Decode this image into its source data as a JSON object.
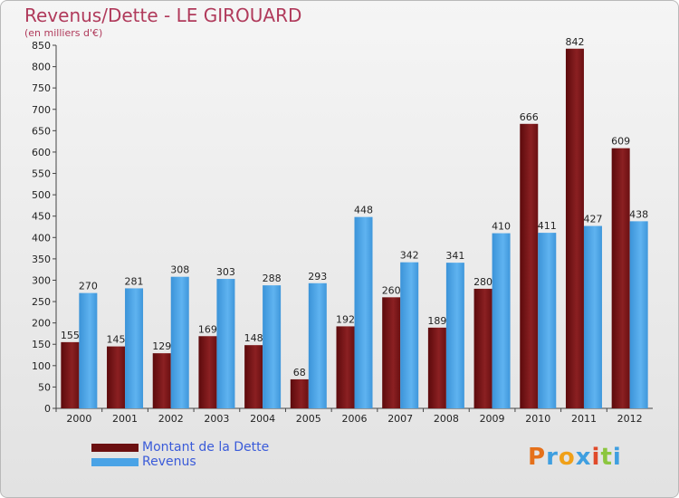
{
  "header": {
    "title": "Revenus/Dette - LE GIROUARD",
    "subtitle": "(en milliers d'€)"
  },
  "colors": {
    "debt": "#7a1416",
    "revenue": "#4aa3e6"
  },
  "legend": {
    "items": [
      {
        "label": "Montant de la Dette",
        "color": "#6b0f10"
      },
      {
        "label": "Revenus",
        "color": "#4aa3e6"
      }
    ]
  },
  "logo": {
    "text": "Proxiti",
    "letter_colors": [
      "#e5701a",
      "#3f9fe0",
      "#f0a018",
      "#3f9fe0",
      "#e04a2a",
      "#8cc63f",
      "#3f9fe0"
    ]
  },
  "chart_data": {
    "type": "bar",
    "categories": [
      "2000",
      "2001",
      "2002",
      "2003",
      "2004",
      "2005",
      "2006",
      "2007",
      "2008",
      "2009",
      "2010",
      "2011",
      "2012"
    ],
    "series": [
      {
        "name": "Montant de la Dette",
        "values": [
          155,
          145,
          129,
          169,
          148,
          68,
          192,
          260,
          189,
          280,
          666,
          842,
          609
        ]
      },
      {
        "name": "Revenus",
        "values": [
          270,
          281,
          308,
          303,
          288,
          293,
          448,
          342,
          341,
          410,
          411,
          427,
          438
        ]
      }
    ],
    "ylim": [
      0,
      850
    ],
    "yticks": [
      0,
      50,
      100,
      150,
      200,
      250,
      300,
      350,
      400,
      450,
      500,
      550,
      600,
      650,
      700,
      750,
      800,
      850
    ],
    "grid": false,
    "legend": "bottom-left"
  }
}
